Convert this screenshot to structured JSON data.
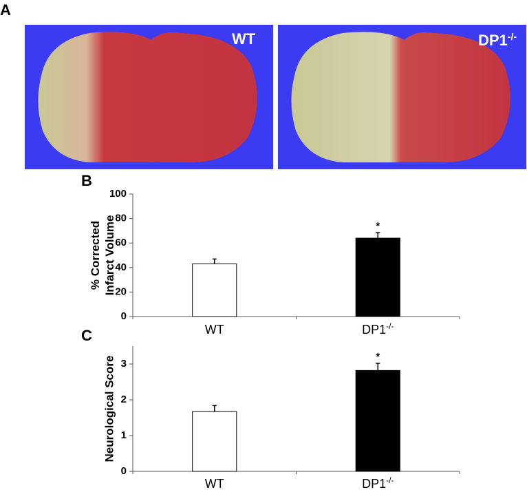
{
  "panel_a": {
    "label": "A",
    "images": [
      {
        "label": "WT",
        "superscript": null
      },
      {
        "label": "DP1",
        "superscript": "-/-"
      }
    ]
  },
  "chart_data": [
    {
      "type": "bar",
      "panel_label": "B",
      "ylabel": [
        "% Corrected",
        "Infarct Volume"
      ],
      "categories": [
        "WT",
        "DP1"
      ],
      "category_superscripts": [
        null,
        "-/-"
      ],
      "values": [
        43,
        64
      ],
      "errors": [
        4,
        4.5
      ],
      "colors": [
        "#ffffff",
        "#000000"
      ],
      "significance": [
        null,
        "*"
      ],
      "ylim": [
        0,
        100
      ],
      "yticks": [
        0,
        20,
        40,
        60,
        80,
        100
      ]
    },
    {
      "type": "bar",
      "panel_label": "C",
      "ylabel": [
        "Neurological Score"
      ],
      "categories": [
        "WT",
        "DP1"
      ],
      "category_superscripts": [
        null,
        "-/-"
      ],
      "values": [
        1.67,
        2.82
      ],
      "errors": [
        0.17,
        0.2
      ],
      "colors": [
        "#ffffff",
        "#000000"
      ],
      "significance": [
        null,
        "*"
      ],
      "ylim": [
        0,
        3.5
      ],
      "yticks": [
        0,
        1,
        2,
        3
      ]
    }
  ]
}
